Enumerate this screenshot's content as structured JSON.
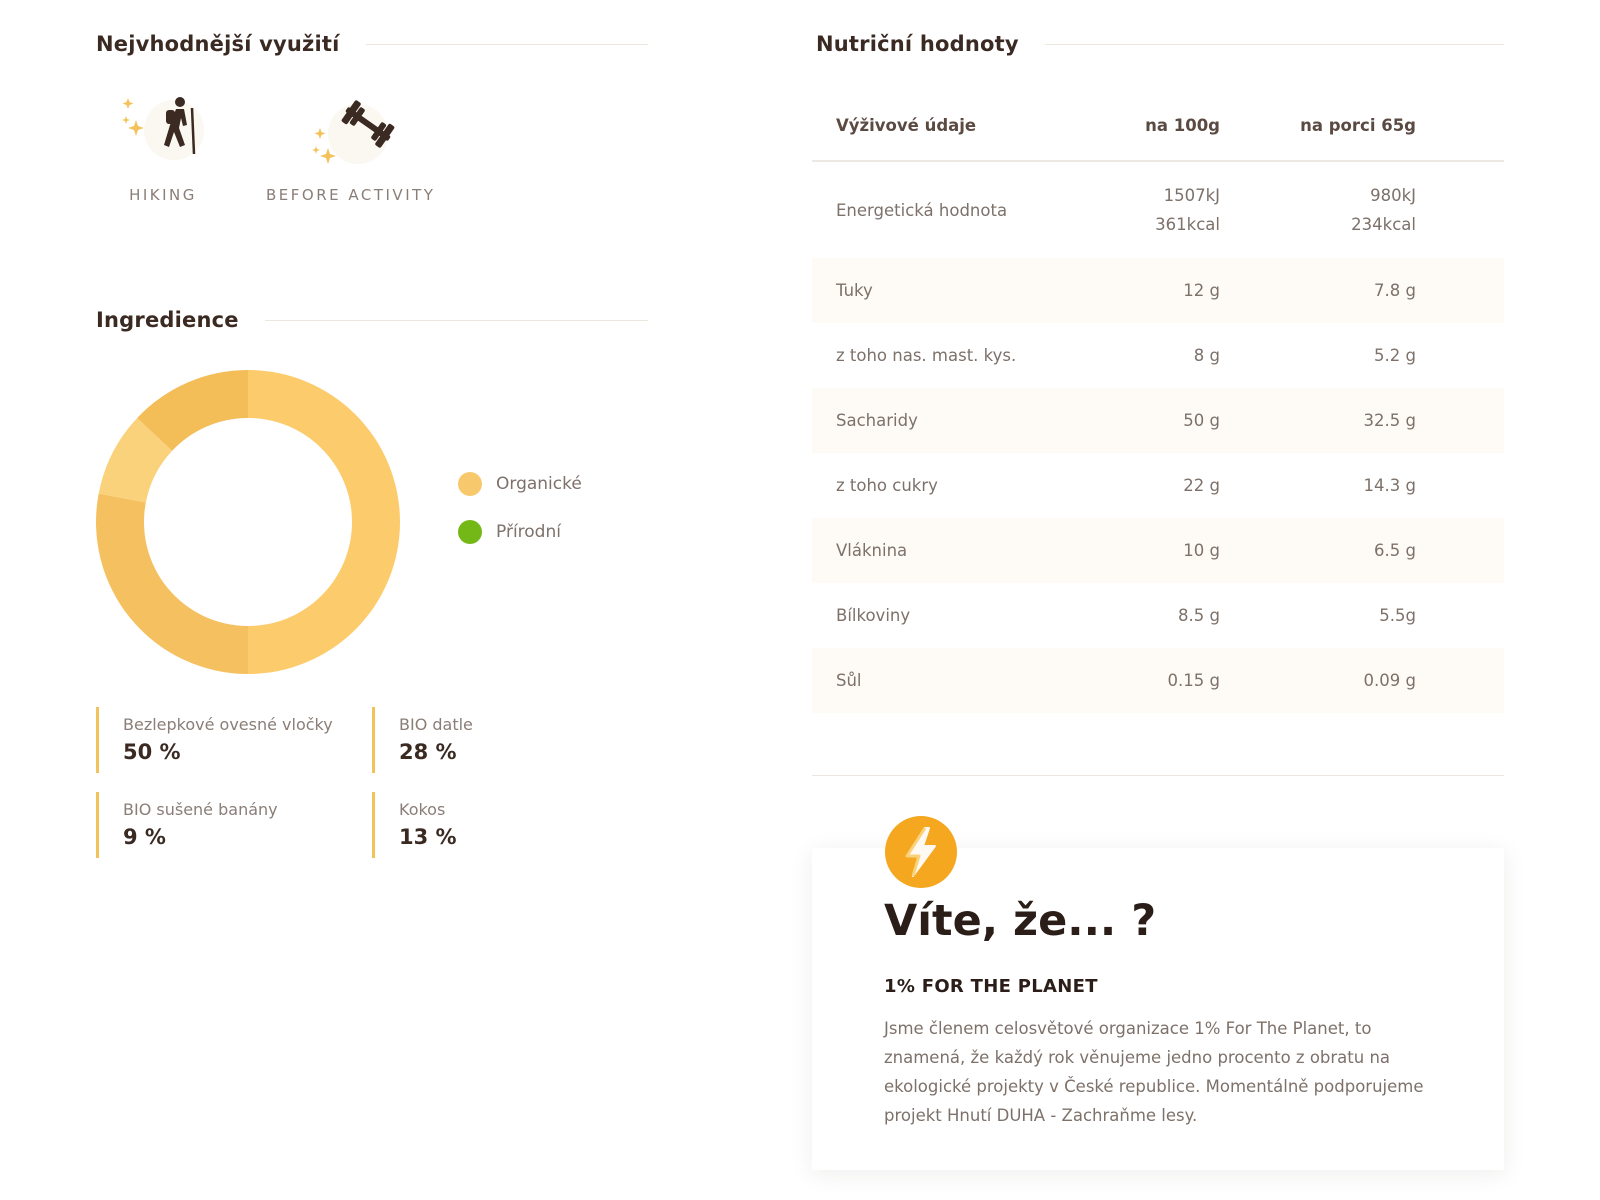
{
  "usage_section": {
    "title": "Nejvhodnější využití",
    "items": [
      {
        "label": "HIKING",
        "icon": "hiker-icon"
      },
      {
        "label": "BEFORE ACTIVITY",
        "icon": "dumbbell-icon"
      }
    ]
  },
  "ingredients_section": {
    "title": "Ingredience",
    "legend": [
      {
        "label": "Organické",
        "color": "#f8c96c"
      },
      {
        "label": "Přírodní",
        "color": "#74b818"
      }
    ],
    "items": [
      {
        "name": "Bezlepkové ovesné vločky",
        "percent": "50 %"
      },
      {
        "name": "BIO datle",
        "percent": "28 %"
      },
      {
        "name": "BIO sušené banány",
        "percent": "9 %"
      },
      {
        "name": "Kokos",
        "percent": "13 %"
      }
    ]
  },
  "chart_data": {
    "type": "pie",
    "categories": [
      "Bezlepkové ovesné vločky",
      "BIO datle",
      "BIO sušené banány",
      "Kokos"
    ],
    "values": [
      50,
      28,
      9,
      13
    ],
    "colors": [
      "#fccc6c",
      "#f5c160",
      "#fbd27c",
      "#f3bd58"
    ]
  },
  "nutrition_section": {
    "title": "Nutriční hodnoty",
    "headers": [
      "Výživové údaje",
      "na 100g",
      "na porci 65g"
    ],
    "energy": {
      "label": "Energetická hodnota",
      "per100_kj": "1507kJ",
      "per100_kcal": "361kcal",
      "portion_kj": "980kJ",
      "portion_kcal": "234kcal"
    },
    "rows": [
      {
        "label": "Tuky",
        "per100": "12 g",
        "portion": "7.8 g"
      },
      {
        "label": "z toho nas. mast. kys.",
        "per100": "8 g",
        "portion": "5.2 g"
      },
      {
        "label": "Sacharidy",
        "per100": "50 g",
        "portion": "32.5 g"
      },
      {
        "label": "z toho cukry",
        "per100": "22 g",
        "portion": "14.3 g"
      },
      {
        "label": "Vláknina",
        "per100": "10 g",
        "portion": "6.5 g"
      },
      {
        "label": "Bílkoviny",
        "per100": "8.5 g",
        "portion": "5.5g"
      },
      {
        "label": "Sůl",
        "per100": "0.15 g",
        "portion": "0.09 g"
      }
    ]
  },
  "fact_card": {
    "icon": "lightning-bolt-icon",
    "title": "Víte, že... ?",
    "subtitle": "1% FOR THE PLANET",
    "text": "Jsme členem celosvětové organizace 1% For The Planet, to znamená, že každý rok věnujeme jedno procento z obratu na ekologické projekty v České republice. Momentálně podporujeme projekt Hnutí DUHA - Zachraňme lesy."
  }
}
